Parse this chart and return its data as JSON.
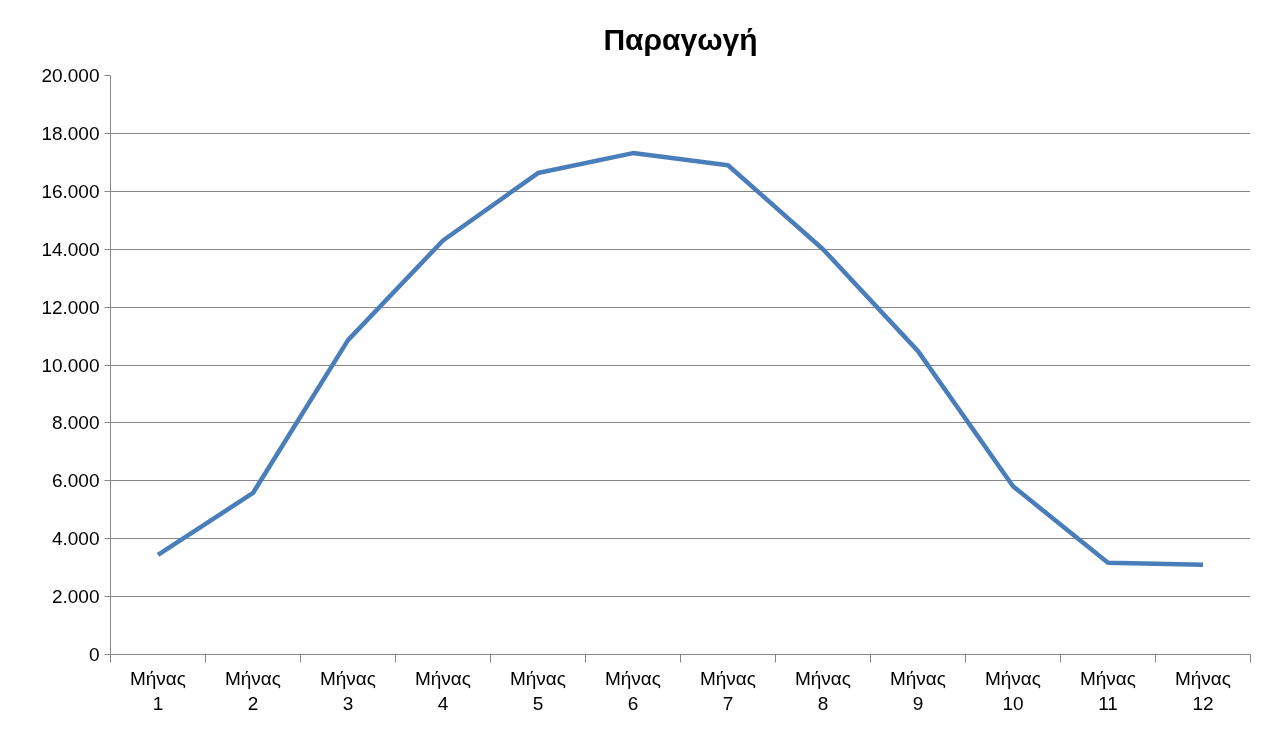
{
  "chart_data": {
    "type": "line",
    "title": "Παραγωγή",
    "categories": [
      "Μήνας 1",
      "Μήνας 2",
      "Μήνας 3",
      "Μήνας 4",
      "Μήνας 5",
      "Μήνας 6",
      "Μήνας 7",
      "Μήνας 8",
      "Μήνας 9",
      "Μήνας 10",
      "Μήνας 11",
      "Μήνας 12"
    ],
    "series": [
      {
        "color": "#4a7ebb",
        "values": [
          3440,
          5580,
          10860,
          14300,
          16630,
          17320,
          16900,
          14000,
          10480,
          5810,
          3170,
          3100
        ]
      }
    ],
    "ylim": [
      0,
      20000
    ],
    "yticks": [
      {
        "value": 0,
        "label": "0"
      },
      {
        "value": 2000,
        "label": "2.000"
      },
      {
        "value": 4000,
        "label": "4.000"
      },
      {
        "value": 6000,
        "label": "6.000"
      },
      {
        "value": 8000,
        "label": "8.000"
      },
      {
        "value": 10000,
        "label": "10.000"
      },
      {
        "value": 12000,
        "label": "12.000"
      },
      {
        "value": 14000,
        "label": "14.000"
      },
      {
        "value": 16000,
        "label": "16.000"
      },
      {
        "value": 18000,
        "label": "18.000"
      },
      {
        "value": 20000,
        "label": "20.000"
      }
    ],
    "grid": "y",
    "marker": "none",
    "line_style": "solid"
  }
}
